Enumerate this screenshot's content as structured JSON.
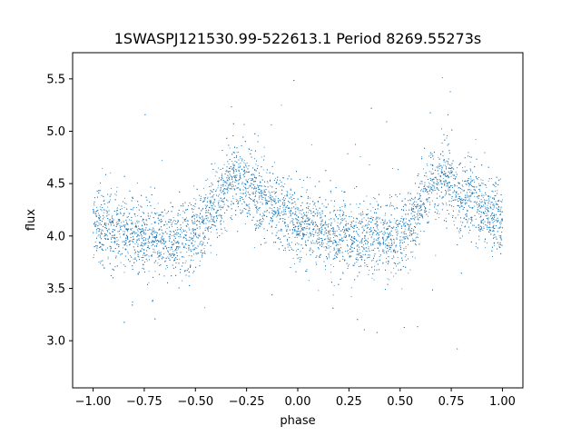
{
  "chart_data": {
    "type": "scatter",
    "title": "1SWASPJ121530.99-522613.1 Period 8269.55273s",
    "xlabel": "phase",
    "ylabel": "flux",
    "xlim": [
      -1.1,
      1.1
    ],
    "ylim": [
      2.55,
      5.75
    ],
    "x_ticks": [
      -1.0,
      -0.75,
      -0.5,
      -0.25,
      0.0,
      0.25,
      0.5,
      0.75,
      1.0
    ],
    "x_tick_labels": [
      "−1.00",
      "−0.75",
      "−0.50",
      "−0.25",
      "0.00",
      "0.25",
      "0.50",
      "0.75",
      "1.00"
    ],
    "y_ticks": [
      3.0,
      3.5,
      4.0,
      4.5,
      5.0,
      5.5
    ],
    "y_tick_labels": [
      "3.0",
      "3.5",
      "4.0",
      "4.5",
      "5.0",
      "5.5"
    ],
    "grid": false,
    "marker_color": "#1f77b4",
    "phase_range": [
      -1.0,
      1.0
    ],
    "light_curve_profile": {
      "phase": [
        0.0,
        0.05,
        0.1,
        0.15,
        0.2,
        0.25,
        0.3,
        0.35,
        0.4,
        0.45,
        0.5,
        0.55,
        0.6,
        0.65,
        0.7,
        0.75,
        0.8,
        0.85,
        0.9,
        0.95,
        1.0
      ],
      "flux": [
        4.13,
        4.09,
        4.05,
        4.02,
        4.0,
        3.99,
        3.98,
        3.98,
        3.98,
        3.99,
        4.02,
        4.12,
        4.3,
        4.48,
        4.55,
        4.5,
        4.4,
        4.32,
        4.25,
        4.19,
        4.13
      ]
    }
  }
}
